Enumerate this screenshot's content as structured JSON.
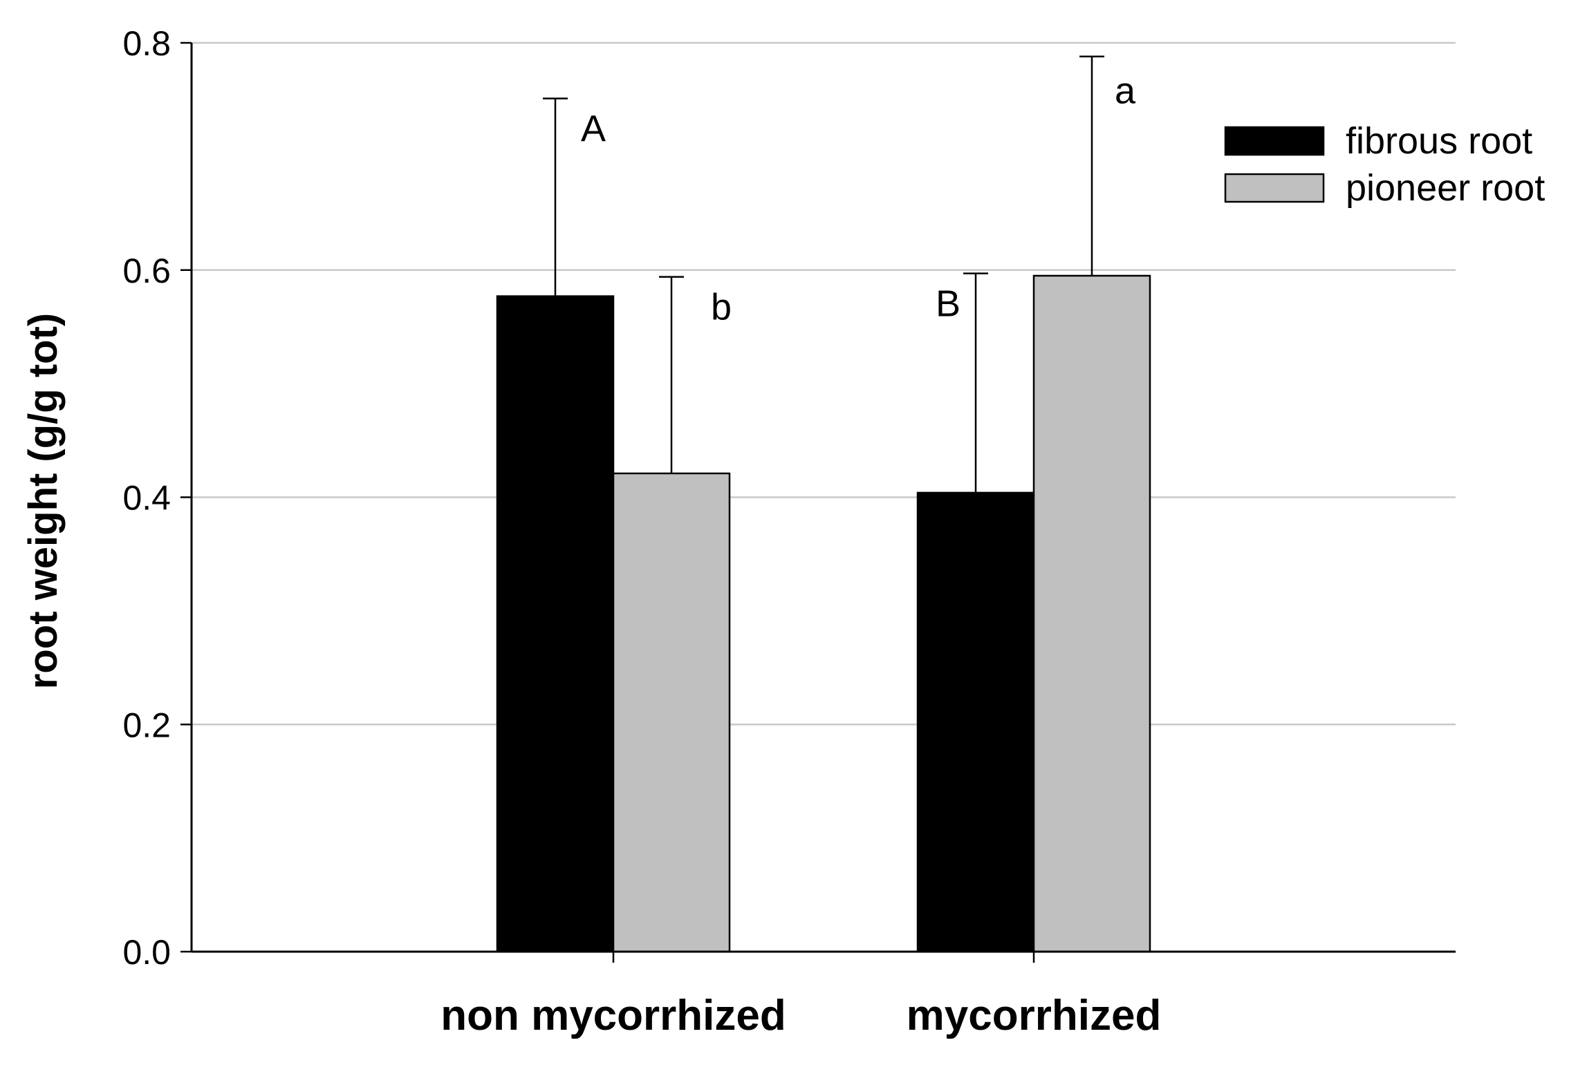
{
  "chart_data": {
    "type": "bar",
    "title": "",
    "xlabel": "",
    "ylabel": "root weight (g/g tot)",
    "categories": [
      "non mycorrhized",
      "mycorrhized"
    ],
    "ylim": [
      0,
      0.8
    ],
    "yticks": [
      "0.0",
      "0.2",
      "0.4",
      "0.6",
      "0.8"
    ],
    "grid": true,
    "legend_position": "top-right",
    "series": [
      {
        "name": "fibrous root",
        "color": "#000000",
        "values": [
          0.577,
          0.404
        ],
        "errors": [
          0.174,
          0.193
        ],
        "annotations": [
          "A",
          "B"
        ]
      },
      {
        "name": "pioneer root",
        "color": "#c0c0c0",
        "values": [
          0.421,
          0.595
        ],
        "errors": [
          0.173,
          0.193
        ],
        "annotations": [
          "b",
          "a"
        ]
      }
    ]
  }
}
